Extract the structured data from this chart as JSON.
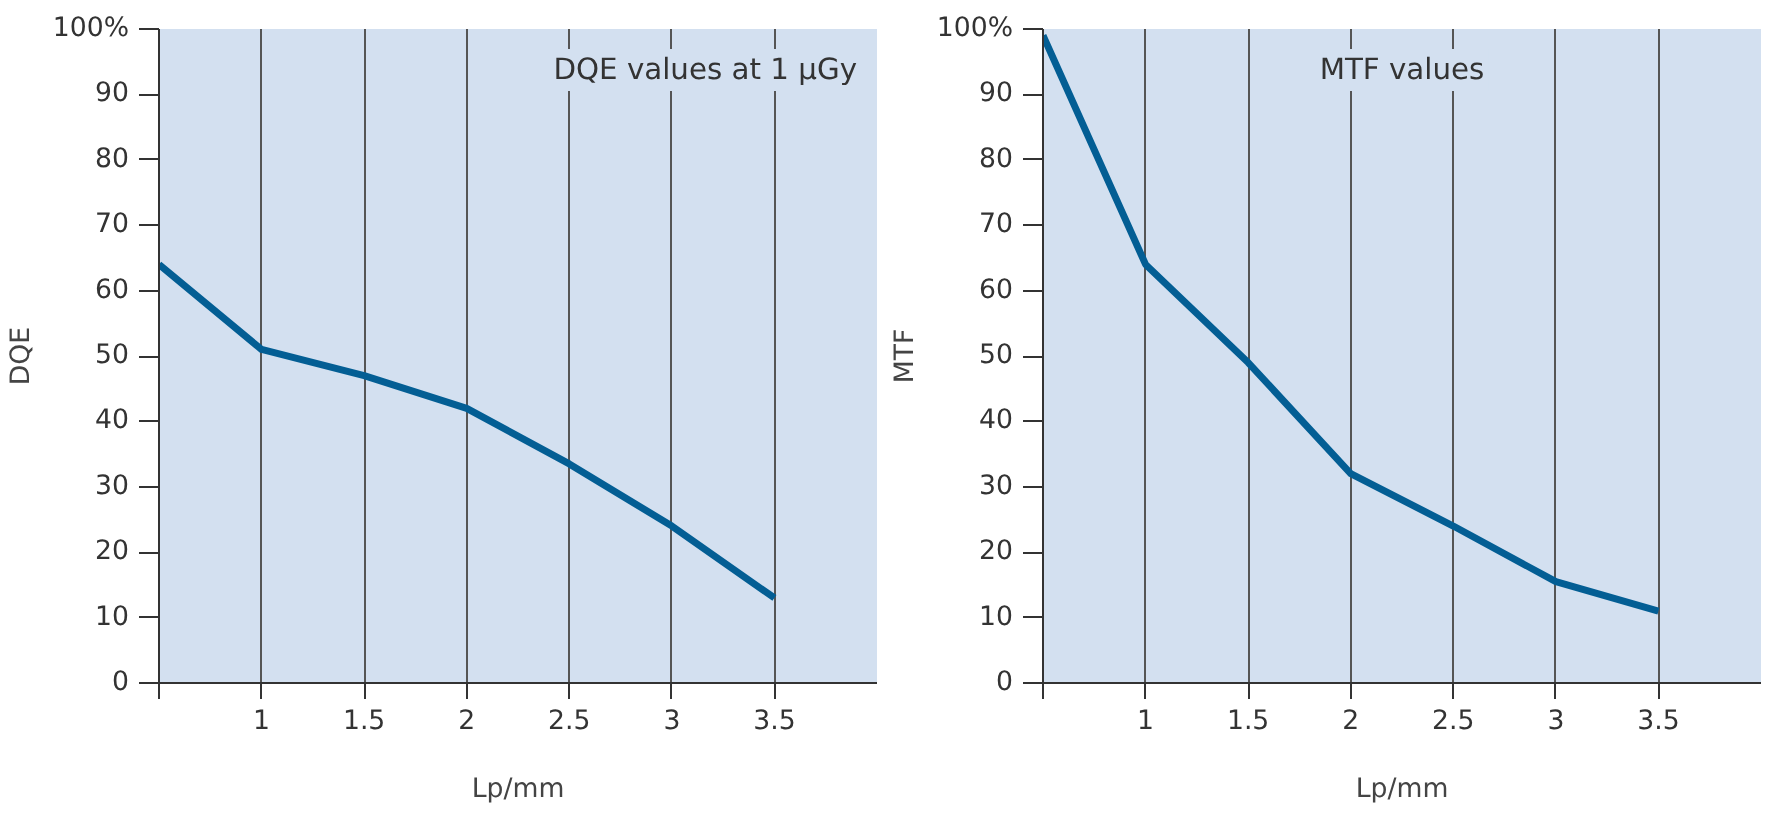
{
  "chart_data": [
    {
      "type": "line",
      "x": [
        0.5,
        1,
        1.5,
        2,
        2.5,
        3,
        3.5
      ],
      "values": [
        64,
        51,
        47,
        42,
        33.5,
        24,
        13
      ],
      "color": "#035e94",
      "xlabel": "Lp/mm",
      "ylabel": "DQE",
      "annotations": [
        "DQE values at 1 μGy"
      ],
      "xlim": [
        0.5,
        4
      ],
      "xticks": [
        {
          "value": 0.5,
          "label": null
        },
        1,
        1.5,
        2,
        2.5,
        3,
        3.5
      ],
      "ylim": [
        0,
        100
      ],
      "yticks": [
        0,
        10,
        20,
        30,
        40,
        50,
        60,
        70,
        80,
        90,
        {
          "value": 100,
          "label": "100%"
        }
      ],
      "grid": "x",
      "marker": "none",
      "line_style": "solid"
    },
    {
      "type": "line",
      "x": [
        0.5,
        1,
        1.5,
        2,
        2.5,
        3,
        3.5
      ],
      "values": [
        99,
        64,
        49,
        32,
        24,
        15.5,
        11
      ],
      "color": "#035e94",
      "xlabel": "Lp/mm",
      "ylabel": "MTF",
      "annotations": [
        "MTF values"
      ],
      "xlim": [
        0.5,
        4
      ],
      "xticks": [
        {
          "value": 0.5,
          "label": null
        },
        1,
        1.5,
        2,
        2.5,
        3,
        3.5
      ],
      "ylim": [
        0,
        100
      ],
      "yticks": [
        0,
        10,
        20,
        30,
        40,
        50,
        60,
        70,
        80,
        90,
        {
          "value": 100,
          "label": "100%"
        }
      ],
      "grid": "x",
      "marker": "none",
      "line_style": "solid"
    }
  ]
}
